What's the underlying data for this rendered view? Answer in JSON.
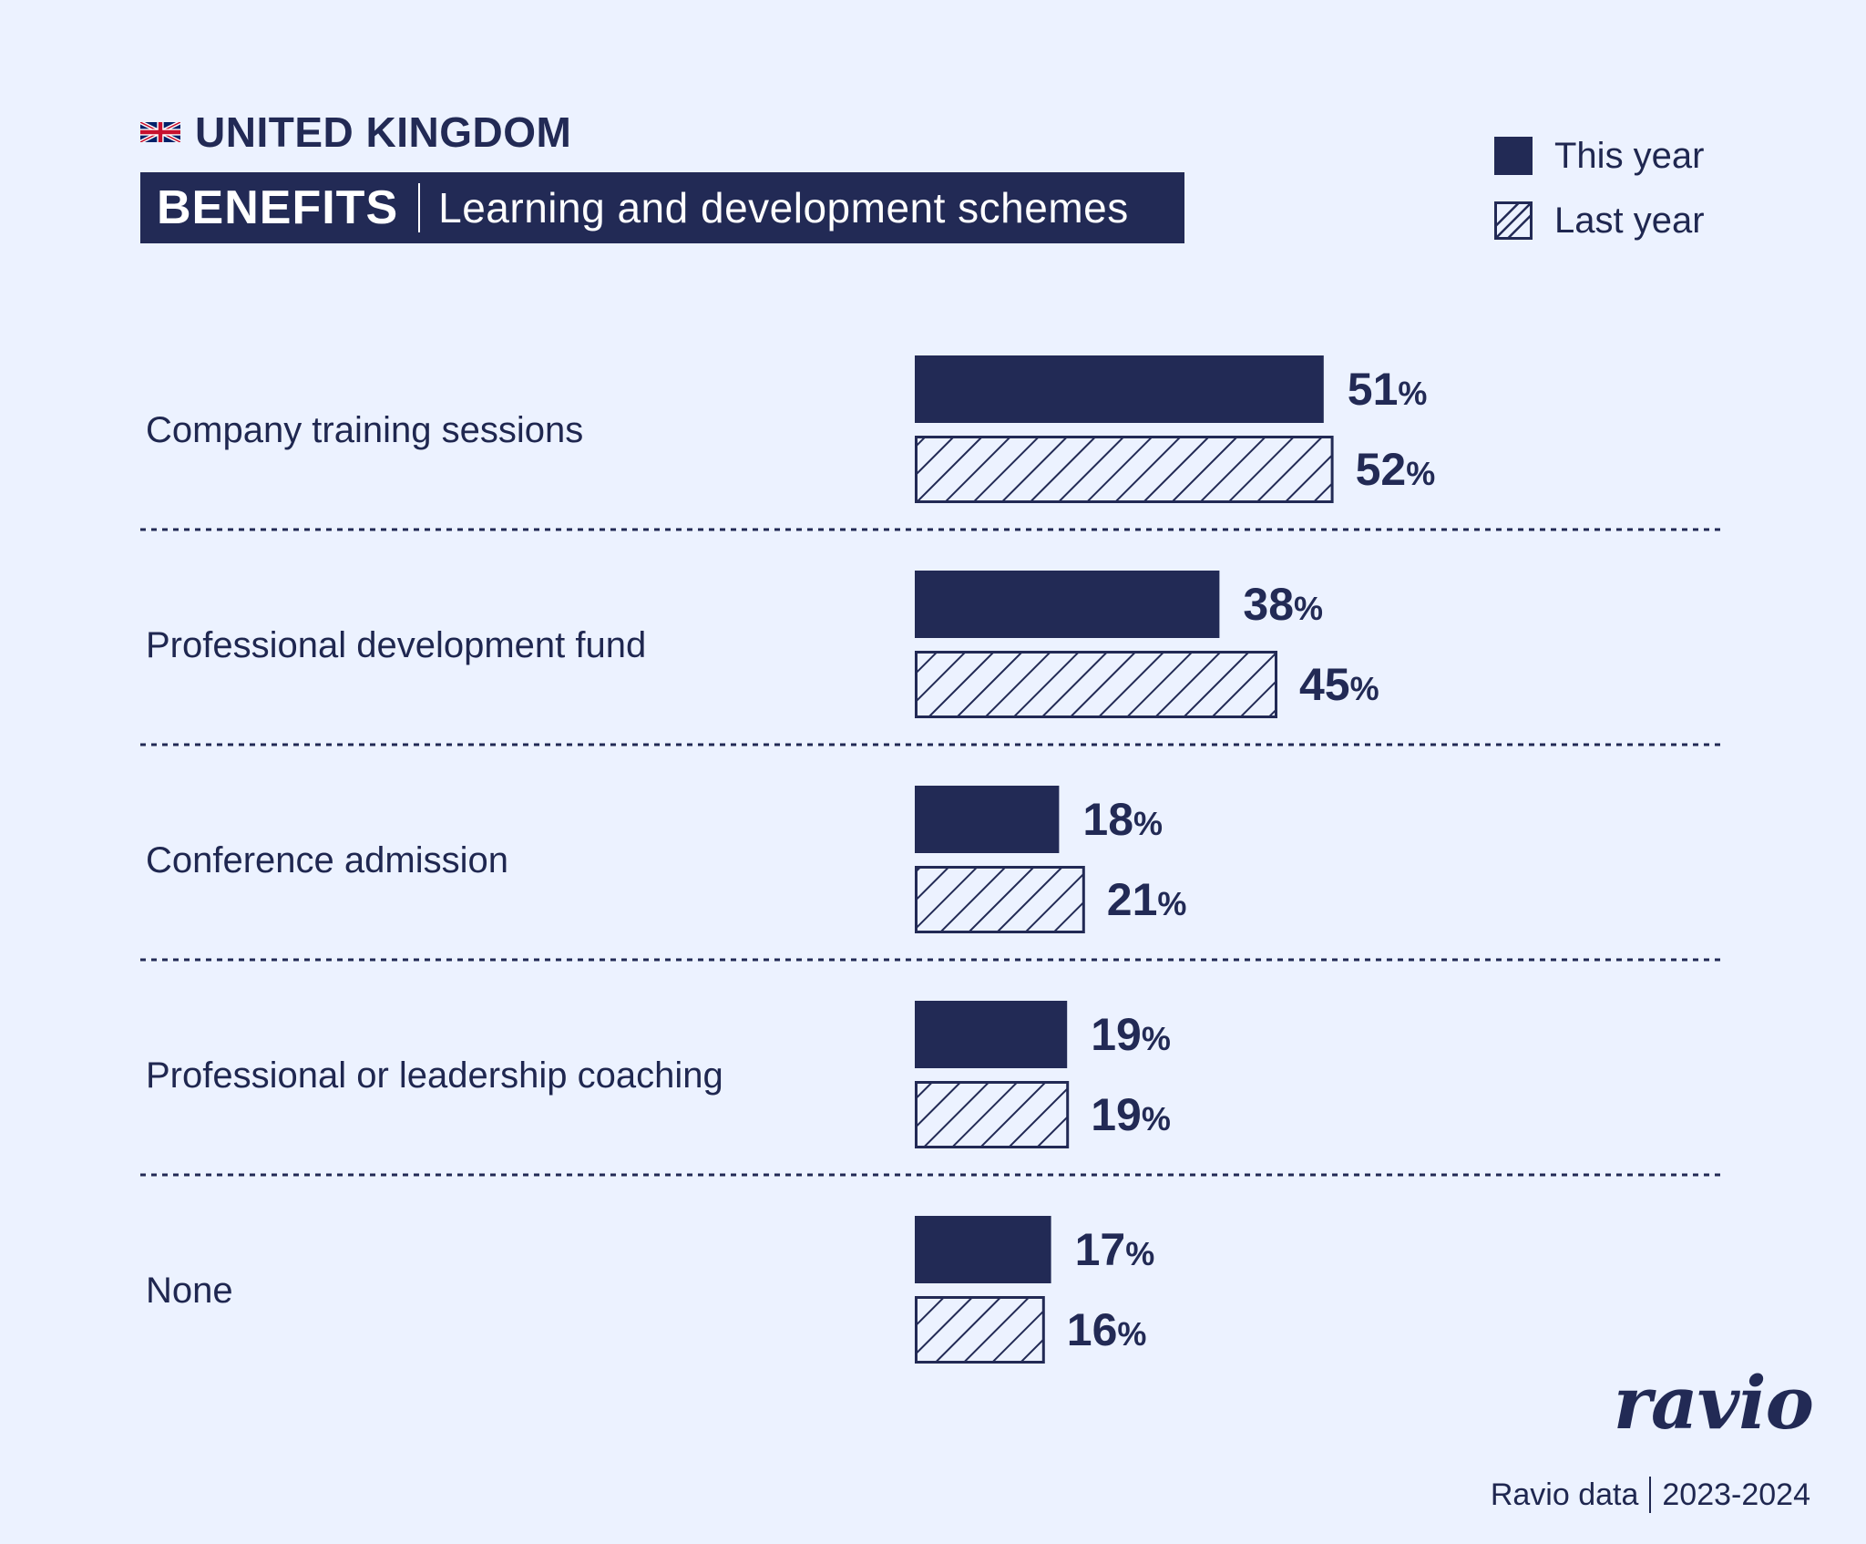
{
  "header": {
    "country": "UNITED KINGDOM",
    "category": "BENEFITS",
    "subtitle": "Learning and development schemes"
  },
  "legend": {
    "this_year": "This year",
    "last_year": "Last year"
  },
  "colors": {
    "bar": "#222a55",
    "background": "#ecf2ff",
    "text": "#1f2750"
  },
  "chart_data": {
    "type": "bar",
    "orientation": "horizontal",
    "title": "BENEFITS | Learning and development schemes",
    "categories": [
      "Company training sessions",
      "Professional development fund",
      "Conference admission",
      "Professional or leadership coaching",
      "None"
    ],
    "series": [
      {
        "name": "This year",
        "values": [
          51,
          38,
          18,
          19,
          17
        ],
        "style": "solid"
      },
      {
        "name": "Last year",
        "values": [
          52,
          45,
          21,
          19,
          16
        ],
        "style": "hatched"
      }
    ],
    "unit": "%",
    "xlim": [
      0,
      100
    ],
    "xlabel": "",
    "ylabel": "",
    "grid": false,
    "legend_position": "top-right"
  },
  "footer": {
    "brand": "ravio",
    "source": "Ravio data",
    "period": "2023-2024"
  }
}
